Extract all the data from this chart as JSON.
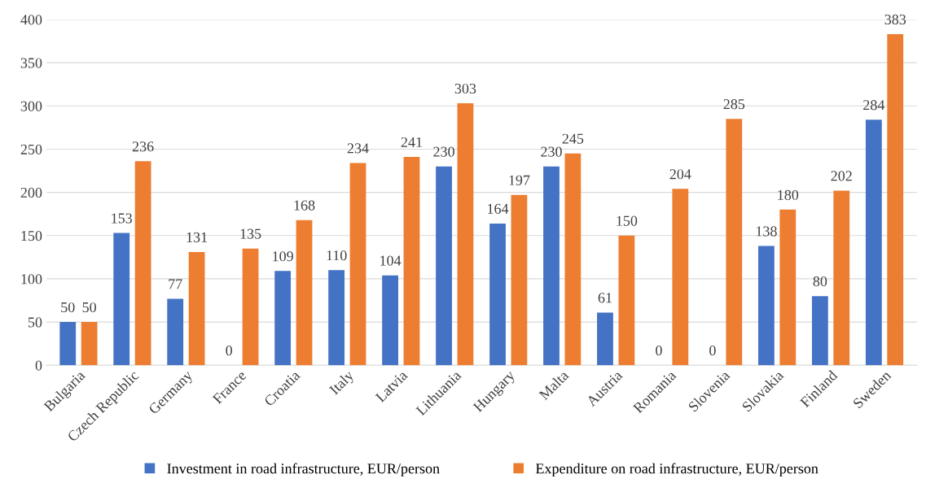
{
  "chart_data": {
    "type": "bar",
    "categories": [
      "Bulgaria",
      "Czech Republic",
      "Germany",
      "France",
      "Croatia",
      "Italy",
      "Latvia",
      "Lithuania",
      "Hungary",
      "Malta",
      "Austria",
      "Romania",
      "Slovenia",
      "Slovakia",
      "Finland",
      "Sweden"
    ],
    "series": [
      {
        "name": "Investment in road infrastructure, EUR/person",
        "color": "#4472c4",
        "values": [
          50,
          153,
          77,
          0,
          109,
          110,
          104,
          230,
          164,
          230,
          61,
          0,
          0,
          138,
          80,
          284
        ]
      },
      {
        "name": "Expenditure on road infrastructure, EUR/person",
        "color": "#ed7d31",
        "values": [
          50,
          236,
          131,
          135,
          168,
          234,
          241,
          303,
          197,
          245,
          150,
          204,
          285,
          180,
          202,
          383
        ]
      }
    ],
    "ylim": [
      0,
      400
    ],
    "yticks": [
      0,
      50,
      100,
      150,
      200,
      250,
      300,
      350,
      400
    ],
    "grid": "y",
    "legend": "bottom",
    "data_labels": true
  }
}
